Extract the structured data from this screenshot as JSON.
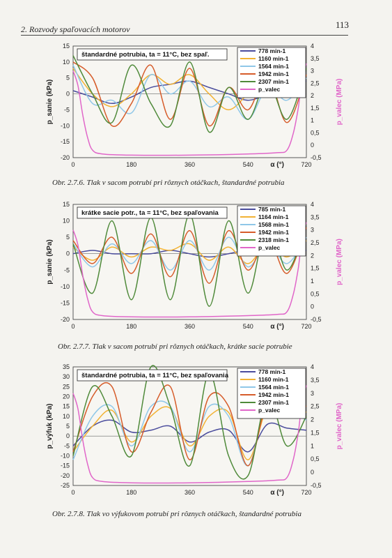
{
  "header": {
    "chapter": "2. Rozvody spaľovacích motorov",
    "page_number": "113"
  },
  "colors": {
    "778": "#4a4c9c",
    "1160": "#f2b233",
    "1564": "#8fc7e8",
    "1942": "#d65c2a",
    "2307": "#4f8a3a",
    "valec": "#e066c9"
  },
  "chart_data": [
    {
      "type": "line",
      "title_box": "štandardné potrubia, ta = 11°C, bez spaľ.",
      "xlabel": "α (°)",
      "ylabel": "p_sanie (kPa)",
      "y2label": "p_valec (MPa)",
      "xlim": [
        0,
        720
      ],
      "ylim": [
        -20,
        15
      ],
      "y2lim": [
        -0.5,
        4
      ],
      "x_ticks": [
        "0",
        "180",
        "360",
        "540",
        "720"
      ],
      "y_ticks": [
        "15",
        "10",
        "5",
        "0",
        "-5",
        "-10",
        "-15",
        "-20"
      ],
      "y2_ticks": [
        "4",
        "3,5",
        "3",
        "2,5",
        "2",
        "1,5",
        "1",
        "0,5",
        "0",
        "-0,5"
      ],
      "caption": "Obr. 2.7.6. Tlak v sacom potrubí pri rôznych otáčkach, štandardné potrubia",
      "series": [
        {
          "name": "778 min-1",
          "color": "#4a4c9c",
          "x": [
            0,
            60,
            120,
            180,
            240,
            300,
            360,
            420,
            480,
            540,
            600,
            660,
            720
          ],
          "values": [
            1,
            -1,
            -3,
            -1,
            2,
            3,
            4,
            2,
            0,
            -2,
            0,
            3,
            4
          ]
        },
        {
          "name": "1160 min-1",
          "color": "#f2b233",
          "x": [
            0,
            60,
            120,
            180,
            240,
            300,
            360,
            420,
            480,
            540,
            600,
            660,
            720
          ],
          "values": [
            8,
            0,
            -4,
            0,
            6,
            3,
            6,
            0,
            -5,
            0,
            5,
            0,
            6
          ]
        },
        {
          "name": "1564 min-1",
          "color": "#8fc7e8",
          "x": [
            0,
            60,
            120,
            180,
            240,
            300,
            360,
            420,
            480,
            540,
            600,
            660,
            720
          ],
          "values": [
            9,
            -3,
            -2,
            -6,
            6,
            0,
            4,
            -4,
            -1,
            -8,
            2,
            -2,
            5
          ]
        },
        {
          "name": "1942 min-1",
          "color": "#d65c2a",
          "x": [
            0,
            60,
            120,
            180,
            240,
            300,
            360,
            420,
            480,
            540,
            600,
            660,
            720
          ],
          "values": [
            10,
            5,
            -10,
            -3,
            9,
            -8,
            8,
            -10,
            2,
            -5,
            6,
            -9,
            6
          ]
        },
        {
          "name": "2307 min-1",
          "color": "#4f8a3a",
          "x": [
            0,
            60,
            120,
            180,
            240,
            300,
            360,
            420,
            480,
            540,
            600,
            660,
            720
          ],
          "values": [
            12,
            0,
            -9,
            9,
            -3,
            -10,
            10,
            -12,
            2,
            -8,
            4,
            -8,
            8
          ]
        },
        {
          "name": "p_valec",
          "color": "#e066c9",
          "axis": "y2",
          "x": [
            0,
            15,
            30,
            45,
            60,
            90,
            180,
            360,
            540,
            630,
            660,
            680,
            695,
            705,
            720
          ],
          "values": [
            3.0,
            2.4,
            1.2,
            0.3,
            -0.2,
            -0.35,
            -0.4,
            -0.4,
            -0.35,
            -0.3,
            -0.2,
            0.5,
            1.5,
            2.5,
            3.3
          ]
        }
      ]
    },
    {
      "type": "line",
      "title_box": "krátke sacie potr., ta = 11°C, bez spaľovania",
      "xlabel": "α (°)",
      "ylabel": "p_sanie (kPa)",
      "y2label": "p_valec (MPa)",
      "xlim": [
        0,
        720
      ],
      "ylim": [
        -20,
        15
      ],
      "y2lim": [
        -0.5,
        4
      ],
      "x_ticks": [
        "0",
        "180",
        "360",
        "540",
        "720"
      ],
      "y_ticks": [
        "15",
        "10",
        "5",
        "0",
        "-5",
        "-10",
        "-15",
        "-20"
      ],
      "y2_ticks": [
        "4",
        "3,5",
        "3",
        "2,5",
        "2",
        "1,5",
        "1",
        "0,5",
        "0",
        "-0,5"
      ],
      "caption": "Obr. 2.7.7. Tlak v sacom potrubí pri rôznych otáčkach, krátke sacie potrubie",
      "series": [
        {
          "name": "785 min-1",
          "color": "#4a4c9c",
          "x": [
            0,
            60,
            120,
            180,
            240,
            300,
            360,
            420,
            480,
            540,
            600,
            660,
            720
          ],
          "values": [
            0,
            1,
            0,
            0,
            0,
            1,
            0,
            -1,
            0,
            1,
            0,
            1,
            1
          ]
        },
        {
          "name": "1164 min-1",
          "color": "#f2b233",
          "x": [
            0,
            60,
            120,
            180,
            240,
            300,
            360,
            420,
            480,
            540,
            600,
            660,
            720
          ],
          "values": [
            2,
            -2,
            2,
            -1,
            2,
            1,
            3,
            -2,
            2,
            -3,
            3,
            -1,
            4
          ]
        },
        {
          "name": "1568 min-1",
          "color": "#8fc7e8",
          "x": [
            0,
            60,
            120,
            180,
            240,
            300,
            360,
            420,
            480,
            540,
            600,
            660,
            720
          ],
          "values": [
            3,
            -4,
            3,
            -3,
            4,
            -5,
            4,
            -5,
            5,
            -4,
            3,
            -3,
            5
          ]
        },
        {
          "name": "1942 min-1",
          "color": "#d65c2a",
          "x": [
            0,
            60,
            120,
            180,
            240,
            300,
            360,
            420,
            480,
            540,
            600,
            660,
            720
          ],
          "values": [
            4,
            -3,
            5,
            -6,
            6,
            -7,
            7,
            -9,
            7,
            -5,
            5,
            -6,
            8
          ]
        },
        {
          "name": "2318 min-1",
          "color": "#4f8a3a",
          "x": [
            0,
            60,
            120,
            180,
            240,
            300,
            360,
            420,
            480,
            540,
            600,
            660,
            720
          ],
          "values": [
            3,
            -12,
            10,
            -14,
            11,
            -14,
            12,
            -16,
            10,
            -12,
            10,
            -5,
            9
          ]
        },
        {
          "name": "p_valec",
          "color": "#e066c9",
          "axis": "y2",
          "x": [
            0,
            15,
            30,
            45,
            60,
            90,
            180,
            360,
            540,
            630,
            660,
            680,
            695,
            705,
            720
          ],
          "values": [
            3.0,
            2.4,
            1.2,
            0.3,
            -0.2,
            -0.35,
            -0.4,
            -0.4,
            -0.35,
            -0.3,
            -0.2,
            0.5,
            1.5,
            2.5,
            3.3
          ]
        }
      ]
    },
    {
      "type": "line",
      "title_box": "štandardné potrubia, ta = 11°C, bez spaľovania",
      "xlabel": "α (°)",
      "ylabel": "p_výfuk (kPa)",
      "y2label": "p_valec (MPa)",
      "xlim": [
        0,
        720
      ],
      "ylim": [
        -25,
        35
      ],
      "y2lim": [
        -0.5,
        4
      ],
      "x_ticks": [
        "0",
        "180",
        "360",
        "540",
        "720"
      ],
      "y_ticks": [
        "35",
        "30",
        "25",
        "20",
        "15",
        "10",
        "5",
        "0",
        "-5",
        "-10",
        "-15",
        "-20",
        "-25"
      ],
      "y2_ticks": [
        "4",
        "3,5",
        "3",
        "2,5",
        "2",
        "1,5",
        "1",
        "0,5",
        "0",
        "-0,5"
      ],
      "caption": "Obr. 2.7.8. Tlak vo výfukovom potrubí pri rôznych otáčkach, štandardné potrubia",
      "series": [
        {
          "name": "778 min-1",
          "color": "#4a4c9c",
          "x": [
            0,
            60,
            120,
            180,
            240,
            300,
            360,
            420,
            480,
            540,
            600,
            660,
            720
          ],
          "values": [
            -5,
            5,
            8,
            2,
            3,
            5,
            -3,
            2,
            3,
            -8,
            6,
            4,
            3
          ]
        },
        {
          "name": "1160 min-1",
          "color": "#f2b233",
          "x": [
            0,
            60,
            120,
            180,
            240,
            300,
            360,
            420,
            480,
            540,
            600,
            660,
            720
          ],
          "values": [
            -8,
            5,
            13,
            -3,
            10,
            14,
            -5,
            10,
            12,
            -12,
            15,
            18,
            12
          ]
        },
        {
          "name": "1564 min-1",
          "color": "#8fc7e8",
          "x": [
            0,
            60,
            120,
            180,
            240,
            300,
            360,
            420,
            480,
            540,
            600,
            660,
            720
          ],
          "values": [
            -12,
            10,
            15,
            -5,
            15,
            15,
            -8,
            15,
            10,
            -15,
            18,
            14,
            8
          ]
        },
        {
          "name": "1942 min-1",
          "color": "#d65c2a",
          "x": [
            0,
            60,
            120,
            180,
            240,
            300,
            360,
            420,
            480,
            540,
            600,
            660,
            720
          ],
          "values": [
            -8,
            20,
            25,
            -8,
            12,
            25,
            -12,
            20,
            15,
            -15,
            18,
            20,
            15
          ]
        },
        {
          "name": "2307 min-1",
          "color": "#4f8a3a",
          "x": [
            0,
            60,
            120,
            180,
            240,
            300,
            360,
            420,
            480,
            540,
            600,
            660,
            720
          ],
          "values": [
            -10,
            25,
            10,
            -10,
            35,
            15,
            -15,
            32,
            -10,
            -20,
            20,
            -5,
            10
          ]
        },
        {
          "name": "p_valec",
          "color": "#e066c9",
          "axis": "y2",
          "x": [
            0,
            15,
            30,
            45,
            60,
            90,
            180,
            360,
            540,
            630,
            660,
            680,
            695,
            705,
            720
          ],
          "values": [
            3.0,
            2.4,
            1.2,
            0.3,
            -0.2,
            -0.35,
            -0.4,
            -0.4,
            -0.35,
            -0.3,
            -0.2,
            0.5,
            1.5,
            2.5,
            3.3
          ]
        }
      ]
    }
  ]
}
